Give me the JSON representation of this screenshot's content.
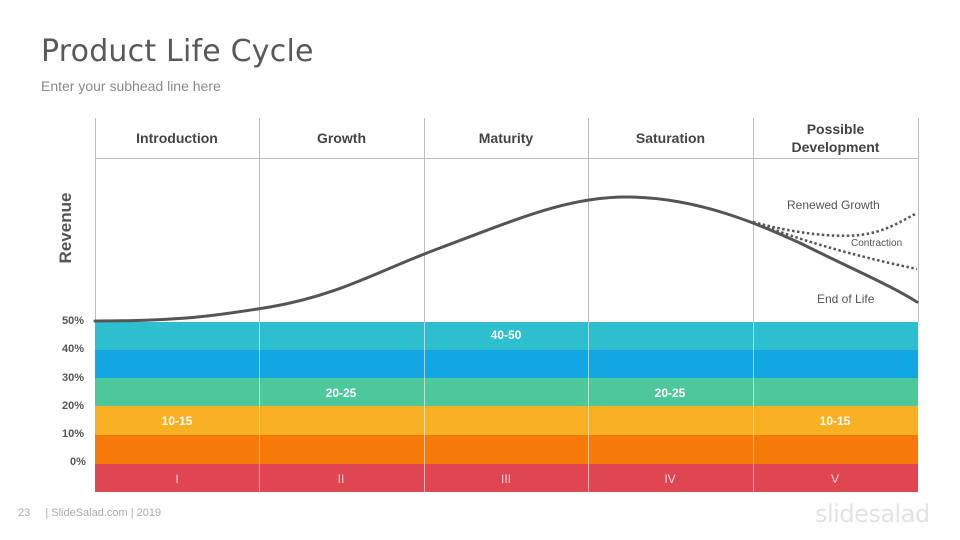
{
  "header": {
    "title": "Product Life Cycle",
    "subtitle": "Enter your subhead line here"
  },
  "stages": [
    {
      "name": "Introduction",
      "roman": "I"
    },
    {
      "name": "Growth",
      "roman": "II"
    },
    {
      "name": "Maturity",
      "roman": "III"
    },
    {
      "name": "Saturation",
      "roman": "IV"
    },
    {
      "name": "Possible\nDevelopment",
      "roman": "V"
    }
  ],
  "axis": {
    "ylabel": "Revenue"
  },
  "percent_ticks": [
    "50%",
    "40%",
    "30%",
    "20%",
    "10%",
    "0%"
  ],
  "band_colors": [
    "#2ebfcf",
    "#12a7e2",
    "#4cc89a",
    "#f9b124",
    "#f57a08",
    "#e04652"
  ],
  "cell_labels": {
    "introduction": "10-15",
    "growth": "20-25",
    "maturity": "40-50",
    "saturation": "20-25",
    "development": "10-15"
  },
  "curve_labels": {
    "renewed": "Renewed Growth",
    "contraction": "Contraction",
    "end": "End of Life"
  },
  "colors": {
    "curve": "#555555",
    "grid": "#bdbdbd"
  },
  "footer": {
    "page_number": "23",
    "credit": "| SlideSalad.com | 2019"
  },
  "logo": "slidesalad"
}
